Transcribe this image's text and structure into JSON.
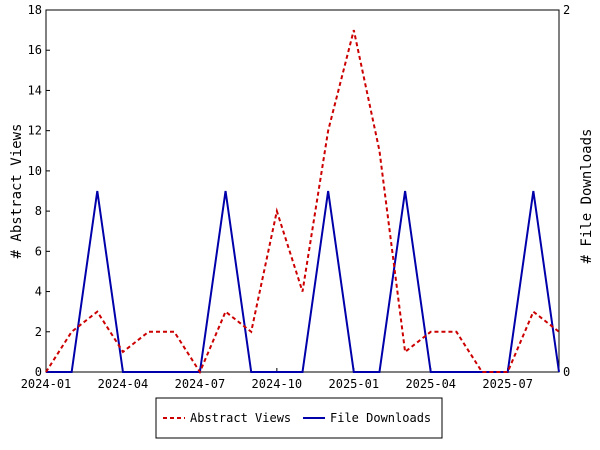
{
  "chart_data": {
    "type": "line",
    "x": [
      "2024-01",
      "2024-02",
      "2024-03",
      "2024-04",
      "2024-05",
      "2024-06",
      "2024-07",
      "2024-08",
      "2024-09",
      "2024-10",
      "2024-11",
      "2024-12",
      "2025-01",
      "2025-02",
      "2025-03",
      "2025-04",
      "2025-05",
      "2025-06",
      "2025-07",
      "2025-08",
      "2025-09"
    ],
    "x_tick_labels": [
      "2024-01",
      "2024-04",
      "2024-07",
      "2024-10",
      "2025-01",
      "2025-04",
      "2025-07"
    ],
    "x_tick_values": [
      "2024-01",
      "2024-04",
      "2024-07",
      "2024-10",
      "2025-01",
      "2025-04",
      "2025-07"
    ],
    "ylabel_left": "# Abstract Views",
    "ylabel_right": "# File Downloads",
    "ylim_left": [
      0,
      18
    ],
    "ylim_right": [
      0,
      2
    ],
    "y_ticks_left": [
      "0",
      "2",
      "4",
      "6",
      "8",
      "10",
      "12",
      "14",
      "16",
      "18"
    ],
    "y_ticks_right": [
      "0",
      "2"
    ],
    "series": [
      {
        "name": "Abstract Views",
        "axis": "left",
        "color": "#cc0000",
        "style": "dashed",
        "values": [
          0,
          2,
          3,
          1,
          2,
          2,
          0,
          3,
          2,
          8,
          4,
          12,
          17,
          11,
          1,
          2,
          2,
          0,
          0,
          3,
          2
        ]
      },
      {
        "name": "File Downloads",
        "axis": "right",
        "color": "#0000aa",
        "style": "solid",
        "values": [
          0,
          0,
          1,
          0,
          0,
          0,
          0,
          1,
          0,
          0,
          0,
          1,
          0,
          0,
          1,
          0,
          0,
          0,
          0,
          1,
          0
        ]
      }
    ],
    "legend_position": "bottom",
    "grid": false
  }
}
